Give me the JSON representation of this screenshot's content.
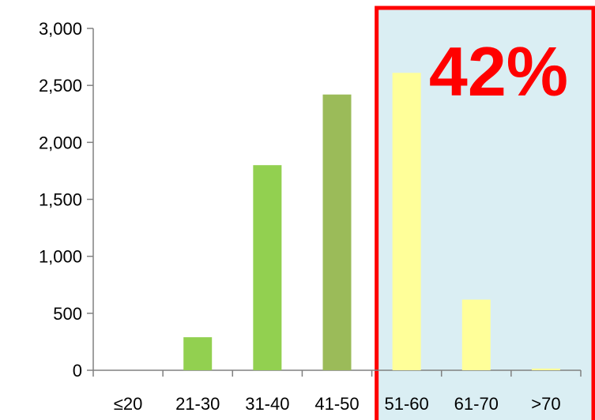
{
  "chart_data": {
    "type": "bar",
    "categories": [
      "≤20",
      "21-30",
      "31-40",
      "41-50",
      "51-60",
      "61-70",
      ">70"
    ],
    "values": [
      0,
      290,
      1800,
      2420,
      2610,
      620,
      15
    ],
    "ylim": [
      0,
      3000
    ],
    "yticks": [
      0,
      500,
      1000,
      1500,
      2000,
      2500,
      3000
    ],
    "ytick_labels": [
      "0",
      "500",
      "1,000",
      "1,500",
      "2,000",
      "2,500",
      "3,000"
    ],
    "bar_colors": [
      "#92d050",
      "#92d050",
      "#92d050",
      "#9bbb59",
      "#ffff99",
      "#ffff99",
      "#ffff99"
    ],
    "grid": false,
    "legend": "none",
    "highlight": {
      "from_category": "51-60",
      "to_category": ">70",
      "label": "42%",
      "fill_color": "#daeef3",
      "border_color": "#ff0000",
      "label_color": "#ff0000"
    }
  }
}
